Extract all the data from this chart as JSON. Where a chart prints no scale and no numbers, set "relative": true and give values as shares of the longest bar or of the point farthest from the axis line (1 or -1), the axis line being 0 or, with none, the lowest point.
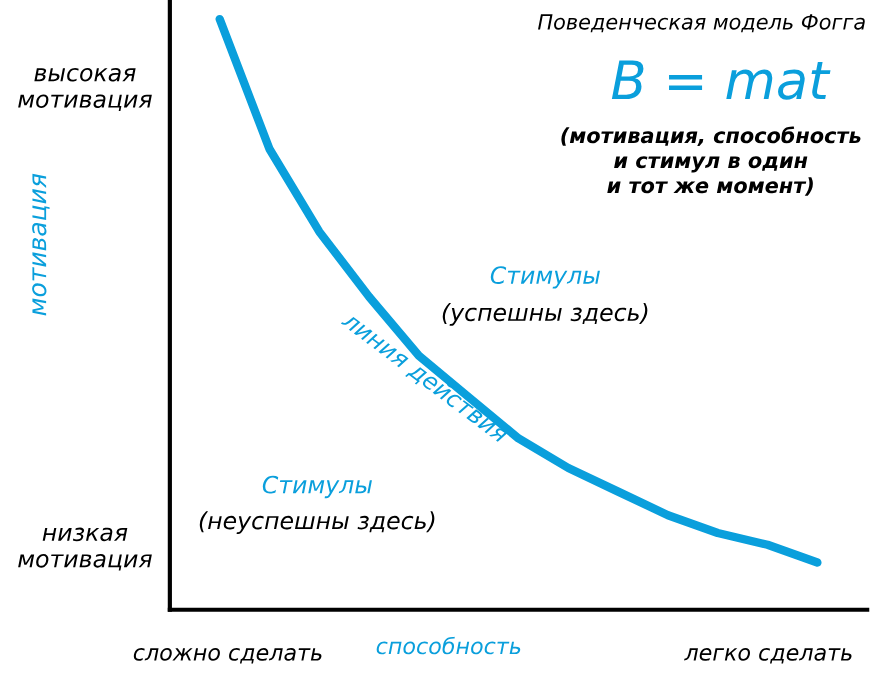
{
  "chart_data": {
    "type": "line",
    "relative": true,
    "tick_labels": false,
    "title": "Поведенческая модель Фогга",
    "subtitle": "B = mat",
    "xlabel": "способность",
    "ylabel": "мотивация",
    "categories": [
      null,
      null,
      null,
      null,
      null,
      null,
      null,
      null,
      null,
      null,
      null,
      null,
      null
    ],
    "series": [
      {
        "color": "#0a9fdc",
        "values": [
          1,
          0.78,
          0.64,
          0.53,
          0.43,
          0.36,
          0.29,
          0.24,
          0.2,
          0.16,
          0.13,
          0.11,
          0.08
        ]
      }
    ],
    "annotations": [
      "(мотивация, способность\nи стимул в один\nи тот же момент)",
      "высокая\nмотивация",
      "низкая\nмотивация",
      "сложно сделать",
      "легко сделать",
      "Стимулы",
      "(успешны здесь)",
      "линия действия",
      "Стимулы",
      "(неуспешны здесь)"
    ]
  }
}
